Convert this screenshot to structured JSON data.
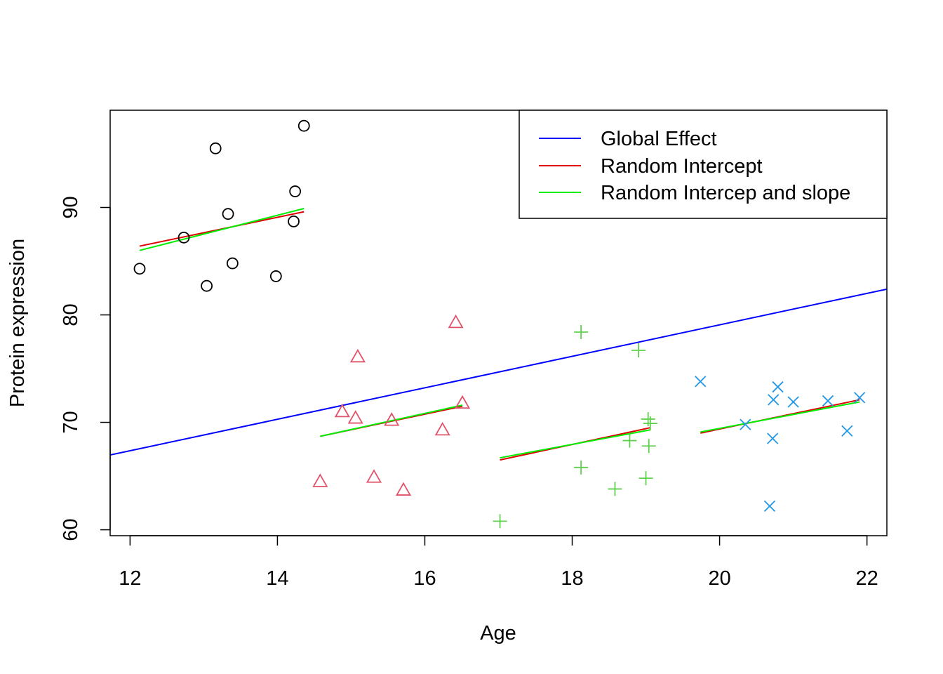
{
  "chart_data": {
    "type": "scatter",
    "xlabel": "Age",
    "ylabel": "Protein expression",
    "xlim": [
      11.73,
      22.27
    ],
    "ylim": [
      59.45,
      99.05
    ],
    "xticks": [
      12,
      14,
      16,
      18,
      20,
      22
    ],
    "yticks": [
      60,
      70,
      80,
      90
    ],
    "legend": {
      "position": "top-right",
      "entries": [
        {
          "label": "Global Effect",
          "color": "#0000FF"
        },
        {
          "label": "Random Intercept",
          "color": "#DF0000"
        },
        {
          "label": "Random Intercep and slope",
          "color": "#00EE00"
        }
      ]
    },
    "groups": [
      {
        "marker": "circle",
        "color": "#000000",
        "points": [
          [
            12.13,
            84.3
          ],
          [
            12.73,
            87.2
          ],
          [
            13.04,
            82.7
          ],
          [
            13.16,
            95.5
          ],
          [
            13.33,
            89.4
          ],
          [
            13.39,
            84.8
          ],
          [
            13.98,
            83.6
          ],
          [
            14.22,
            88.7
          ],
          [
            14.24,
            91.5
          ],
          [
            14.36,
            97.6
          ]
        ]
      },
      {
        "marker": "triangle",
        "color": "#DF536B",
        "points": [
          [
            14.58,
            64.5
          ],
          [
            14.88,
            71.0
          ],
          [
            15.06,
            70.4
          ],
          [
            15.09,
            76.1
          ],
          [
            15.31,
            64.9
          ],
          [
            15.55,
            70.2
          ],
          [
            15.71,
            63.7
          ],
          [
            16.24,
            69.3
          ],
          [
            16.42,
            79.3
          ],
          [
            16.51,
            71.8
          ]
        ]
      },
      {
        "marker": "plus",
        "color": "#61D04F",
        "points": [
          [
            17.02,
            60.8
          ],
          [
            18.12,
            78.4
          ],
          [
            18.12,
            65.8
          ],
          [
            18.58,
            63.8
          ],
          [
            18.78,
            68.3
          ],
          [
            18.9,
            76.7
          ],
          [
            19.0,
            64.8
          ],
          [
            19.03,
            70.3
          ],
          [
            19.04,
            67.8
          ],
          [
            19.06,
            69.9
          ]
        ]
      },
      {
        "marker": "cross",
        "color": "#2297E6",
        "points": [
          [
            19.74,
            73.8
          ],
          [
            20.35,
            69.8
          ],
          [
            20.68,
            62.2
          ],
          [
            20.72,
            68.5
          ],
          [
            20.73,
            72.1
          ],
          [
            20.79,
            73.3
          ],
          [
            21.0,
            71.9
          ],
          [
            21.47,
            72.0
          ],
          [
            21.73,
            69.2
          ],
          [
            21.9,
            72.3
          ]
        ]
      }
    ],
    "lines": [
      {
        "series": "Global Effect",
        "color": "#0000FF",
        "x": [
          11.73,
          22.27
        ],
        "y": [
          66.96,
          82.4
        ]
      },
      {
        "series": "Random Intercept",
        "color": "#DF0000",
        "x": [
          12.13,
          14.36
        ],
        "y": [
          86.4,
          89.6
        ]
      },
      {
        "series": "Random Intercep and slope",
        "color": "#00EE00",
        "x": [
          12.13,
          14.36
        ],
        "y": [
          86.0,
          89.9
        ]
      },
      {
        "series": "Random Intercept",
        "color": "#DF0000",
        "x": [
          14.58,
          16.51
        ],
        "y": [
          68.7,
          71.5
        ]
      },
      {
        "series": "Random Intercep and slope",
        "color": "#00EE00",
        "x": [
          14.58,
          16.51
        ],
        "y": [
          68.7,
          71.6
        ]
      },
      {
        "series": "Random Intercept",
        "color": "#DF0000",
        "x": [
          17.02,
          19.06
        ],
        "y": [
          66.5,
          69.5
        ]
      },
      {
        "series": "Random Intercep and slope",
        "color": "#00EE00",
        "x": [
          17.02,
          19.06
        ],
        "y": [
          66.7,
          69.3
        ]
      },
      {
        "series": "Random Intercept",
        "color": "#DF0000",
        "x": [
          19.74,
          21.9
        ],
        "y": [
          69.0,
          72.1
        ]
      },
      {
        "series": "Random Intercep and slope",
        "color": "#00EE00",
        "x": [
          19.74,
          21.9
        ],
        "y": [
          69.1,
          71.9
        ]
      }
    ]
  }
}
